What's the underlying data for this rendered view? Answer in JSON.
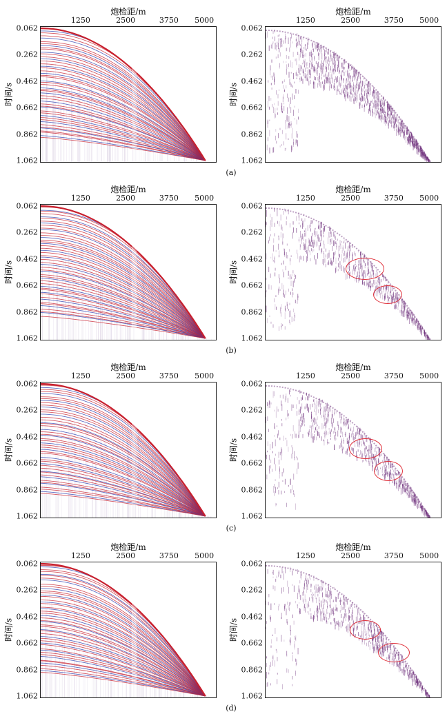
{
  "axes": {
    "x_title": "炮检距/m",
    "y_title": "时间/s",
    "x_ticks": [
      "1250",
      "2500",
      "3750",
      "5000"
    ],
    "y_ticks": [
      "0.062",
      "0.262",
      "0.462",
      "0.662",
      "0.862",
      "1.062"
    ]
  },
  "captions": [
    "(a)",
    "(b)",
    "(c)",
    "(d)"
  ],
  "colors": {
    "red_wiggle": "#c8202e",
    "blue_wiggle": "#2a3fb0",
    "purple_event": "#6a2a78",
    "annotation_ellipse": "#e0303a"
  },
  "rows": [
    {
      "id": "a",
      "left_panel": "gather-with-curves",
      "right_panel": "residual",
      "ellipses": 0
    },
    {
      "id": "b",
      "left_panel": "gather-with-curves",
      "right_panel": "residual",
      "ellipses": 2
    },
    {
      "id": "c",
      "left_panel": "gather-with-curves",
      "right_panel": "residual",
      "ellipses": 2
    },
    {
      "id": "d",
      "left_panel": "gather-with-curves",
      "right_panel": "residual",
      "ellipses": 2
    }
  ]
}
